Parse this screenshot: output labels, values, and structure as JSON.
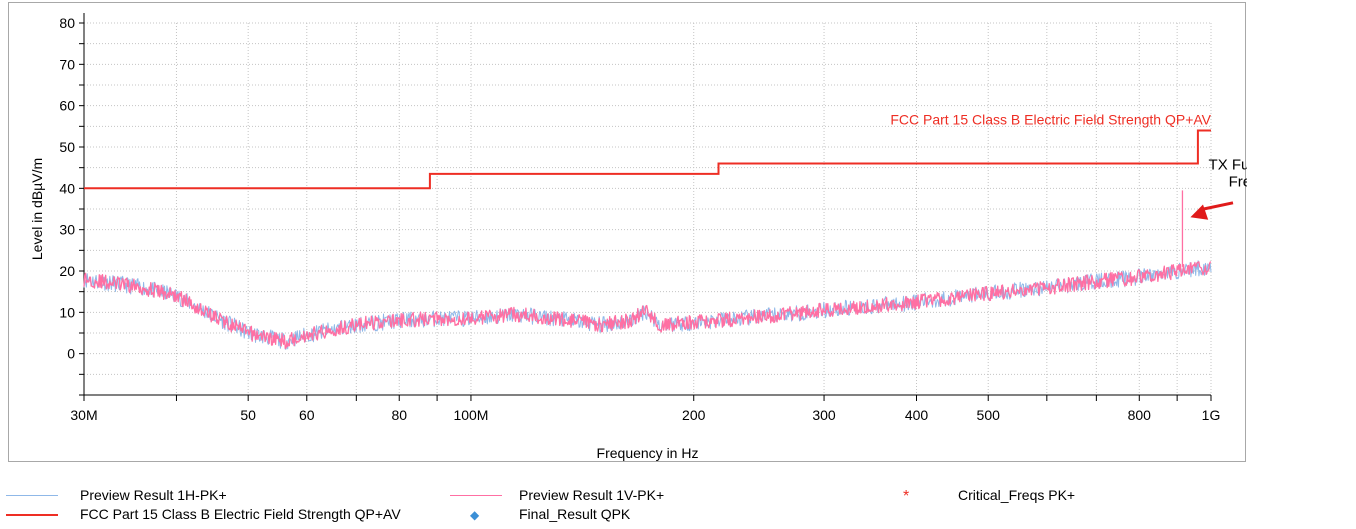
{
  "chart_data": {
    "type": "line",
    "xlabel": "Frequency in Hz",
    "ylabel": "Level in dBµV/m",
    "x_scale": "log",
    "xlim": [
      30000000,
      1000000000
    ],
    "ylim": [
      -10,
      80
    ],
    "y_ticks": [
      0,
      10,
      20,
      30,
      40,
      50,
      60,
      70,
      80
    ],
    "x_tick_labels": [
      {
        "value": 30000000,
        "label": "30M"
      },
      {
        "value": 50000000,
        "label": "50"
      },
      {
        "value": 60000000,
        "label": "60"
      },
      {
        "value": 80000000,
        "label": "80"
      },
      {
        "value": 100000000,
        "label": "100M"
      },
      {
        "value": 200000000,
        "label": "200"
      },
      {
        "value": 300000000,
        "label": "300"
      },
      {
        "value": 400000000,
        "label": "400"
      },
      {
        "value": 500000000,
        "label": "500"
      },
      {
        "value": 800000000,
        "label": "800"
      },
      {
        "value": 1000000000,
        "label": "1G"
      }
    ],
    "grid": true,
    "series": [
      {
        "name": "Preview Result 1H-PK+",
        "color": "#8fb8e8",
        "x": [
          30000000,
          33000000,
          36000000,
          40000000,
          45000000,
          50000000,
          53000000,
          56000000,
          60000000,
          70000000,
          80000000,
          90000000,
          100000000,
          115000000,
          130000000,
          150000000,
          165000000,
          172000000,
          180000000,
          200000000,
          250000000,
          300000000,
          400000000,
          500000000,
          600000000,
          700000000,
          800000000,
          900000000,
          1000000000
        ],
        "values": [
          18,
          17,
          16,
          14,
          9,
          5,
          4,
          3,
          4.5,
          7,
          8,
          8.5,
          8.5,
          9.5,
          8.5,
          7,
          8,
          10.5,
          7,
          7.5,
          9,
          10.5,
          12.5,
          14.5,
          16,
          17.5,
          18.5,
          20,
          21
        ]
      },
      {
        "name": "Preview Result 1V-PK+",
        "color": "#ff6fa3",
        "x": [
          30000000,
          33000000,
          36000000,
          40000000,
          45000000,
          50000000,
          53000000,
          56000000,
          60000000,
          70000000,
          80000000,
          90000000,
          100000000,
          115000000,
          130000000,
          150000000,
          165000000,
          172000000,
          180000000,
          200000000,
          250000000,
          300000000,
          400000000,
          500000000,
          600000000,
          700000000,
          800000000,
          900000000,
          1000000000
        ],
        "values": [
          18,
          17,
          16,
          14,
          9,
          5,
          4,
          3,
          4.5,
          7,
          8,
          8.5,
          8.5,
          9.5,
          8.5,
          7,
          8,
          10.5,
          7,
          7.5,
          9,
          10.5,
          12.5,
          14.5,
          16,
          17.5,
          18.5,
          20,
          21
        ]
      },
      {
        "name": "FCC Part 15 Class B Electric Field Strength QP+AV",
        "color": "#ee2e24",
        "step": true,
        "x": [
          30000000,
          88000000,
          88000000,
          216000000,
          216000000,
          960000000,
          960000000,
          1000000000
        ],
        "values": [
          40,
          40,
          43.5,
          43.5,
          46,
          46,
          54,
          54
        ]
      }
    ],
    "spike": {
      "x": 915000000,
      "y": 39.5
    },
    "limit_label": "FCC Part 15 Class B Electric Field Strength QP+AV",
    "annotation": {
      "text_lines": [
        "TX Fundamental",
        "Frequency"
      ],
      "target_x": 915000000,
      "target_y": 33
    }
  },
  "legend": {
    "items": [
      {
        "label": "Preview Result 1H-PK+",
        "color": "#8fb8e8",
        "symbol": "line"
      },
      {
        "label": "Preview Result 1V-PK+",
        "color": "#ff6fa3",
        "symbol": "line"
      },
      {
        "label": "Critical_Freqs PK+",
        "color": "#ee2e24",
        "symbol": "*"
      },
      {
        "label": "FCC Part 15 Class B Electric Field Strength QP+AV",
        "color": "#ee2e24",
        "symbol": "thickline"
      },
      {
        "label": "Final_Result QPK",
        "color": "#3b8fd6",
        "symbol": "◆"
      }
    ]
  }
}
